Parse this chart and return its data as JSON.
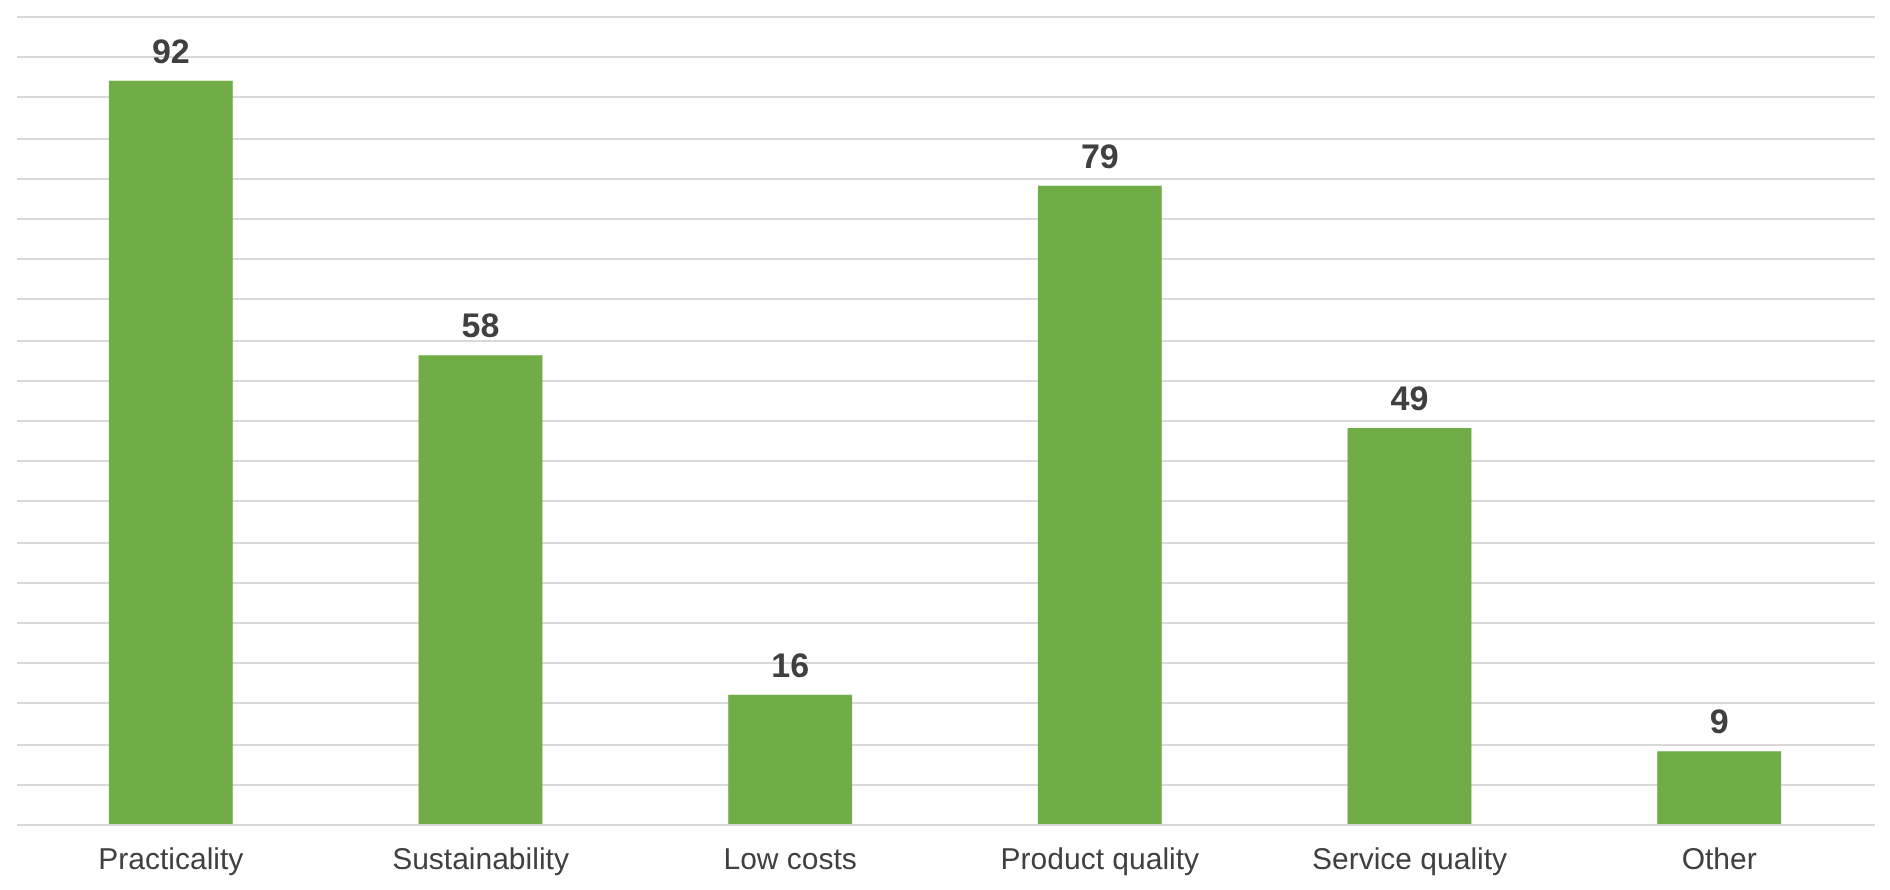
{
  "chart_data": {
    "type": "bar",
    "categories": [
      "Practicality",
      "Sustainability",
      "Low costs",
      "Product quality",
      "Service quality",
      "Other"
    ],
    "values": [
      92,
      58,
      16,
      79,
      49,
      9
    ],
    "color": "#70ad47",
    "data_labels": true,
    "ylim": [
      0,
      100
    ],
    "yticks": [
      {
        "value": 0,
        "label": null
      },
      {
        "value": 5,
        "label": null
      },
      {
        "value": 10,
        "label": null
      },
      {
        "value": 15,
        "label": null
      },
      {
        "value": 20,
        "label": null
      },
      {
        "value": 25,
        "label": null
      },
      {
        "value": 30,
        "label": null
      },
      {
        "value": 35,
        "label": null
      },
      {
        "value": 40,
        "label": null
      },
      {
        "value": 45,
        "label": null
      },
      {
        "value": 50,
        "label": null
      },
      {
        "value": 55,
        "label": null
      },
      {
        "value": 60,
        "label": null
      },
      {
        "value": 65,
        "label": null
      },
      {
        "value": 70,
        "label": null
      },
      {
        "value": 75,
        "label": null
      },
      {
        "value": 80,
        "label": null
      },
      {
        "value": 85,
        "label": null
      },
      {
        "value": 90,
        "label": null
      },
      {
        "value": 95,
        "label": null
      },
      {
        "value": 100,
        "label": null
      }
    ],
    "grid": "y",
    "tick_labels": "x"
  }
}
